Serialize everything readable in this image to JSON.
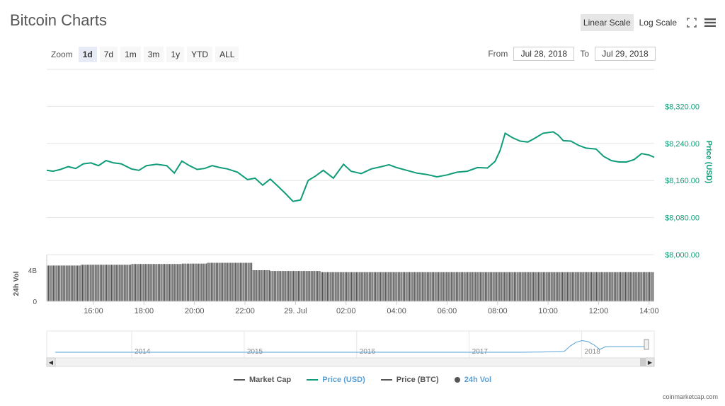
{
  "header": {
    "title": "Bitcoin Charts",
    "linear_label": "Linear Scale",
    "log_label": "Log Scale"
  },
  "zoom": {
    "label": "Zoom",
    "options": [
      "1d",
      "7d",
      "1m",
      "3m",
      "1y",
      "YTD",
      "ALL"
    ],
    "active": "1d"
  },
  "range": {
    "from_label": "From",
    "from_value": "Jul 28, 2018",
    "to_label": "To",
    "to_value": "Jul 29, 2018"
  },
  "colors": {
    "price_usd": "#109c78",
    "volume": "#555555",
    "navigator": "#5aa3d6",
    "active_bg": "#e6e6e6"
  },
  "legend": {
    "market_cap": "Market Cap",
    "price_usd": "Price (USD)",
    "price_btc": "Price (BTC)",
    "volume": "24h Vol"
  },
  "credit": "coinmarketcap.com",
  "chart_data": {
    "type": "line",
    "ylabel": "Price (USD)",
    "y_tick_labels": [
      "$8,320.00",
      "$8,240.00",
      "$8,160.00",
      "$8,080.00",
      "$8,000.00"
    ],
    "y_ticks": [
      8320,
      8240,
      8160,
      8080,
      8000
    ],
    "ylim": [
      8000,
      8400
    ],
    "x_tick_labels": [
      "16:00",
      "18:00",
      "20:00",
      "22:00",
      "29. Jul",
      "02:00",
      "04:00",
      "06:00",
      "08:00",
      "10:00",
      "12:00",
      "14:00"
    ],
    "x_ticks": [
      16,
      18,
      20,
      22,
      24,
      26,
      28,
      30,
      32,
      34,
      36,
      38
    ],
    "xlim": [
      14.15,
      38.2
    ],
    "series": [
      {
        "name": "Price (USD)",
        "x": [
          14.15,
          14.4,
          14.7,
          15.0,
          15.3,
          15.6,
          15.9,
          16.2,
          16.5,
          16.8,
          17.1,
          17.5,
          17.8,
          18.1,
          18.5,
          18.9,
          19.2,
          19.5,
          19.8,
          20.1,
          20.4,
          20.7,
          21.0,
          21.3,
          21.7,
          22.1,
          22.4,
          22.7,
          23.0,
          23.3,
          23.6,
          23.9,
          24.2,
          24.5,
          24.8,
          25.1,
          25.5,
          25.9,
          26.2,
          26.6,
          27.0,
          27.4,
          27.7,
          28.0,
          28.4,
          28.8,
          29.2,
          29.6,
          30.0,
          30.4,
          30.8,
          31.2,
          31.6,
          31.9,
          32.1,
          32.3,
          32.6,
          32.9,
          33.2,
          33.5,
          33.8,
          34.2,
          34.4,
          34.6,
          34.9,
          35.2,
          35.5,
          35.9,
          36.2,
          36.5,
          36.8,
          37.1,
          37.4,
          37.7,
          38.0,
          38.2
        ],
        "values": [
          8182,
          8180,
          8184,
          8190,
          8186,
          8196,
          8198,
          8192,
          8203,
          8198,
          8196,
          8185,
          8182,
          8192,
          8195,
          8192,
          8176,
          8202,
          8192,
          8184,
          8186,
          8192,
          8188,
          8185,
          8178,
          8162,
          8165,
          8150,
          8163,
          8148,
          8132,
          8115,
          8118,
          8160,
          8170,
          8182,
          8165,
          8195,
          8180,
          8175,
          8185,
          8190,
          8194,
          8188,
          8182,
          8176,
          8173,
          8168,
          8172,
          8178,
          8180,
          8188,
          8187,
          8201,
          8225,
          8262,
          8252,
          8245,
          8243,
          8252,
          8262,
          8265,
          8258,
          8246,
          8245,
          8236,
          8230,
          8228,
          8212,
          8203,
          8200,
          8200,
          8205,
          8218,
          8215,
          8210
        ]
      },
      {
        "name": "24h Vol",
        "ylabel": "24h Vol",
        "y_tick_labels": [
          "4B",
          "0"
        ],
        "y_ticks": [
          4,
          0
        ],
        "ylim": [
          0,
          6
        ],
        "segments": [
          {
            "from": 14.15,
            "to": 15.5,
            "value": 4.6
          },
          {
            "from": 15.5,
            "to": 17.5,
            "value": 4.7
          },
          {
            "from": 17.5,
            "to": 19.5,
            "value": 4.8
          },
          {
            "from": 19.5,
            "to": 20.5,
            "value": 4.85
          },
          {
            "from": 20.5,
            "to": 22.3,
            "value": 4.95
          },
          {
            "from": 22.3,
            "to": 23.0,
            "value": 4.0
          },
          {
            "from": 23.0,
            "to": 25.0,
            "value": 3.9
          },
          {
            "from": 25.0,
            "to": 38.2,
            "value": 3.75
          }
        ]
      }
    ],
    "navigator": {
      "x_tick_labels": [
        "2014",
        "2015",
        "2016",
        "2017",
        "2018"
      ]
    }
  }
}
